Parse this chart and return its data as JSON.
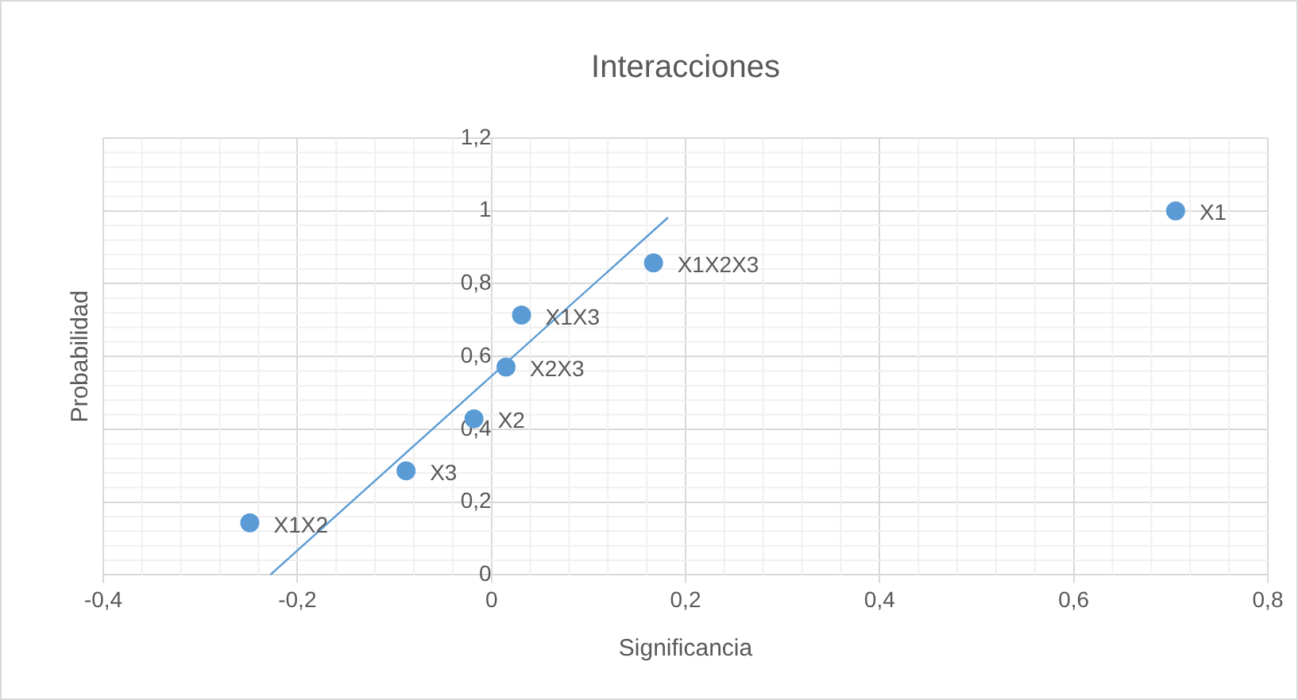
{
  "chart_data": {
    "type": "scatter",
    "title": "Interacciones",
    "xlabel": "Significancia",
    "ylabel": "Probabilidad",
    "series": [
      {
        "color": "#5b9bd5",
        "marker": "circle",
        "x": [
          -0.249,
          -0.088,
          -0.018,
          0.015,
          0.031,
          0.167,
          0.705
        ],
        "values": [
          0.143,
          0.286,
          0.429,
          0.571,
          0.714,
          0.857,
          1.0
        ]
      },
      {
        "type": "line",
        "color": "#5b9bd5",
        "x": [
          -0.228,
          0.182
        ],
        "values": [
          0,
          0.982
        ]
      }
    ],
    "annotations": [
      {
        "text": "X1X2",
        "x": -0.249,
        "y": 0.143
      },
      {
        "text": "X3",
        "x": -0.088,
        "y": 0.286
      },
      {
        "text": "X2",
        "x": -0.018,
        "y": 0.429
      },
      {
        "text": "X2X3",
        "x": 0.015,
        "y": 0.571
      },
      {
        "text": "X1X3",
        "x": 0.031,
        "y": 0.714
      },
      {
        "text": "X1X2X3",
        "x": 0.167,
        "y": 0.857
      },
      {
        "text": "X1",
        "x": 0.705,
        "y": 1.0
      }
    ],
    "xlim": [
      -0.4,
      0.8
    ],
    "xticks": [
      {
        "value": -0.4,
        "label": "-0,4"
      },
      {
        "value": -0.2,
        "label": "-0,2"
      },
      0,
      {
        "value": 0.2,
        "label": "0,2"
      },
      {
        "value": 0.4,
        "label": "0,4"
      },
      {
        "value": 0.6,
        "label": "0,6"
      },
      {
        "value": 0.8,
        "label": "0,8"
      }
    ],
    "ylim": [
      0,
      1.2
    ],
    "yticks": [
      0,
      {
        "value": 0.2,
        "label": "0,2"
      },
      {
        "value": 0.4,
        "label": "0,4"
      },
      {
        "value": 0.6,
        "label": "0,6"
      },
      {
        "value": 0.8,
        "label": "0,8"
      },
      1,
      {
        "value": 1.2,
        "label": "1,2"
      }
    ],
    "grid": true,
    "legend": false
  }
}
